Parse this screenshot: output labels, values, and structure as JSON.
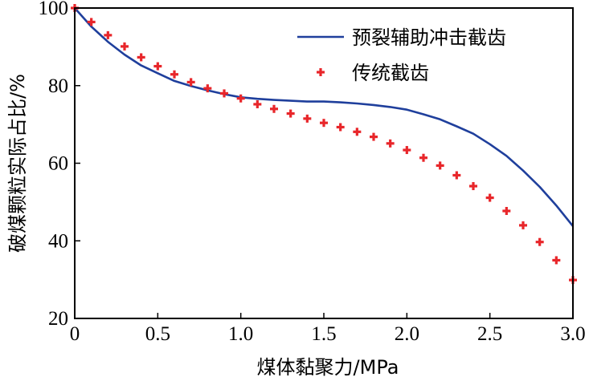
{
  "chart_data": {
    "type": "line",
    "xlabel": "煤体黏聚力/MPa",
    "ylabel": "破煤颗粒实际占比/%",
    "xlim": [
      0,
      3.0
    ],
    "ylim": [
      20,
      100
    ],
    "xticks": [
      "0",
      "0.5",
      "1.0",
      "1.5",
      "2.0",
      "2.5",
      "3.0"
    ],
    "yticks": [
      "20",
      "40",
      "60",
      "80",
      "100"
    ],
    "legend_position": "top-right",
    "series": [
      {
        "name": "预裂辅助冲击截齿",
        "style": "line",
        "color": "#1f3f9c",
        "x": [
          0,
          0.1,
          0.2,
          0.3,
          0.4,
          0.5,
          0.6,
          0.7,
          0.8,
          0.9,
          1.0,
          1.1,
          1.2,
          1.3,
          1.4,
          1.5,
          1.6,
          1.7,
          1.8,
          1.9,
          2.0,
          2.1,
          2.2,
          2.3,
          2.4,
          2.5,
          2.6,
          2.7,
          2.8,
          2.9,
          3.0
        ],
        "y": [
          100,
          95.2,
          91.3,
          88.0,
          85.2,
          83.2,
          81.2,
          79.9,
          78.8,
          77.8,
          77.0,
          76.6,
          76.3,
          76.1,
          75.9,
          75.9,
          75.7,
          75.4,
          75.0,
          74.5,
          73.8,
          72.6,
          71.3,
          69.5,
          67.6,
          64.9,
          61.9,
          58.1,
          53.9,
          49.1,
          43.8
        ]
      },
      {
        "name": "传统截齿",
        "style": "markers",
        "color": "#e8262a",
        "x": [
          0,
          0.1,
          0.2,
          0.3,
          0.4,
          0.5,
          0.6,
          0.7,
          0.8,
          0.9,
          1.0,
          1.1,
          1.2,
          1.3,
          1.4,
          1.5,
          1.6,
          1.7,
          1.8,
          1.9,
          2.0,
          2.1,
          2.2,
          2.3,
          2.4,
          2.5,
          2.6,
          2.7,
          2.8,
          2.9,
          3.0
        ],
        "y": [
          100,
          96.4,
          93.0,
          90.1,
          87.3,
          85.0,
          82.9,
          80.9,
          79.3,
          78.0,
          76.7,
          75.2,
          74.0,
          72.8,
          71.5,
          70.4,
          69.3,
          68.1,
          66.8,
          65.1,
          63.4,
          61.4,
          59.4,
          56.9,
          54.1,
          51.1,
          47.7,
          44.0,
          39.7,
          35.0,
          29.9
        ]
      }
    ]
  }
}
